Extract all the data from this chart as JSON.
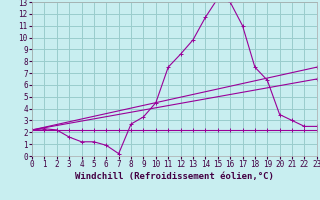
{
  "xlabel": "Windchill (Refroidissement éolien,°C)",
  "xlim": [
    0,
    23
  ],
  "ylim": [
    0,
    13
  ],
  "xticks": [
    0,
    1,
    2,
    3,
    4,
    5,
    6,
    7,
    8,
    9,
    10,
    11,
    12,
    13,
    14,
    15,
    16,
    17,
    18,
    19,
    20,
    21,
    22,
    23
  ],
  "yticks": [
    0,
    1,
    2,
    3,
    4,
    5,
    6,
    7,
    8,
    9,
    10,
    11,
    12,
    13
  ],
  "bg_color": "#c8eef0",
  "line_color": "#990099",
  "grid_color": "#99cccc",
  "line1_x": [
    0,
    1,
    2,
    3,
    4,
    5,
    6,
    7,
    8,
    9,
    10,
    11,
    12,
    13,
    14,
    15,
    16,
    17,
    18,
    19,
    20,
    21,
    22,
    23
  ],
  "line1_y": [
    2.2,
    2.3,
    2.2,
    1.6,
    1.2,
    1.2,
    0.9,
    0.2,
    2.7,
    3.3,
    4.5,
    7.5,
    8.6,
    9.8,
    11.7,
    13.3,
    13.0,
    11.0,
    7.5,
    6.4,
    3.5,
    3.0,
    2.5,
    2.5
  ],
  "line2_x": [
    0,
    1,
    2,
    3,
    4,
    5,
    6,
    7,
    8,
    9,
    10,
    11,
    12,
    13,
    14,
    15,
    16,
    17,
    18,
    19,
    20,
    21,
    22,
    23
  ],
  "line2_y": [
    2.2,
    2.2,
    2.2,
    2.2,
    2.2,
    2.2,
    2.2,
    2.2,
    2.2,
    2.2,
    2.2,
    2.2,
    2.2,
    2.2,
    2.2,
    2.2,
    2.2,
    2.2,
    2.2,
    2.2,
    2.2,
    2.2,
    2.2,
    2.2
  ],
  "line3_x": [
    0,
    23
  ],
  "line3_y": [
    2.2,
    7.5
  ],
  "line4_x": [
    0,
    23
  ],
  "line4_y": [
    2.2,
    6.5
  ],
  "tick_fontsize": 5.5,
  "label_fontsize": 6.5
}
